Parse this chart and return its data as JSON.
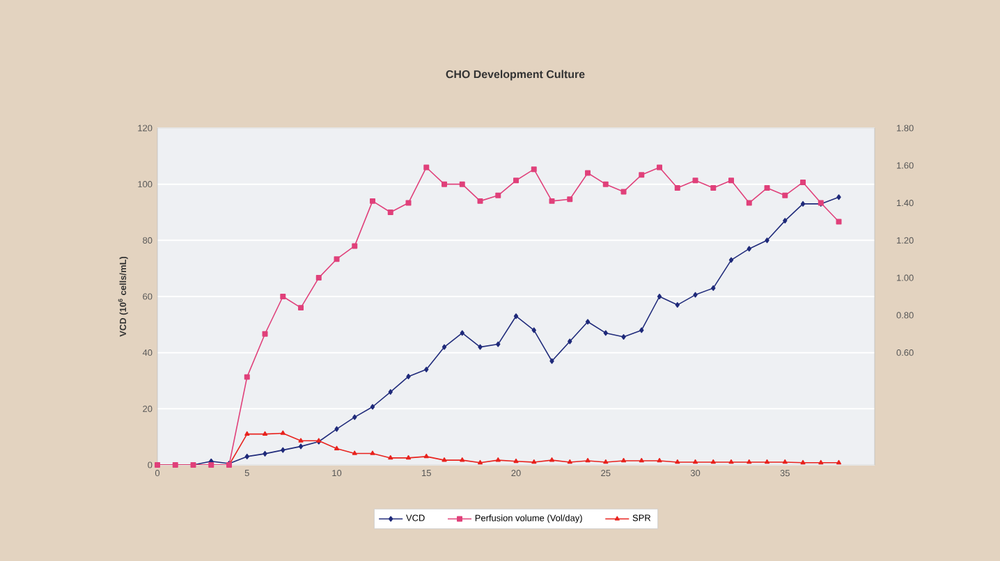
{
  "chart_data": {
    "type": "line",
    "title": "CHO Development Culture",
    "ylabel": "VCD (10$^{6}$ cells/mL)",
    "x": [
      0,
      1,
      2,
      3,
      4,
      5,
      6,
      7,
      8,
      9,
      10,
      11,
      12,
      13,
      14,
      15,
      16,
      17,
      18,
      19,
      20,
      21,
      22,
      23,
      24,
      25,
      26,
      27,
      28,
      29,
      30,
      31,
      32,
      33,
      34,
      35,
      36,
      37,
      38
    ],
    "xlim": [
      0,
      40
    ],
    "xticks": [
      0,
      5,
      10,
      15,
      20,
      25,
      30,
      35
    ],
    "ylim": [
      0,
      120
    ],
    "yticks": [
      0,
      20,
      40,
      60,
      80,
      100,
      120
    ],
    "y2lim": [
      0,
      1.8
    ],
    "y2ticks": [
      {
        "value": 0.6,
        "label": "0.60"
      },
      {
        "value": 0.8,
        "label": "0.80"
      },
      {
        "value": 1.0,
        "label": "1.00"
      },
      {
        "value": 1.2,
        "label": "1.20"
      },
      {
        "value": 1.4,
        "label": "1.40"
      },
      {
        "value": 1.6,
        "label": "1.60"
      },
      {
        "value": 1.8,
        "label": "1.80"
      }
    ],
    "grid": "y",
    "legend": "bottom",
    "line_style": "solid",
    "series": [
      {
        "name": "VCD",
        "color": "#1f2a7a",
        "marker": "diamond",
        "values": [
          0,
          0,
          0,
          1.3,
          0.5,
          3,
          4,
          5.3,
          6.6,
          8.3,
          12.8,
          17,
          20.7,
          26,
          31.5,
          34,
          42,
          47,
          42,
          43,
          53,
          48,
          37,
          44,
          51,
          47,
          45.6,
          48,
          60,
          57,
          60.6,
          63,
          73,
          77,
          80,
          87,
          93,
          93,
          95.4
        ]
      },
      {
        "name": "Perfusion volume (Vol/day)",
        "color": "#e0407a",
        "marker": "square",
        "axis": "y2",
        "values": [
          0,
          0,
          0,
          0,
          0,
          0.47,
          0.7,
          0.9,
          0.84,
          1.0,
          1.1,
          1.17,
          1.41,
          1.35,
          1.4,
          1.59,
          1.5,
          1.5,
          1.41,
          1.44,
          1.52,
          1.58,
          1.41,
          1.42,
          1.56,
          1.5,
          1.46,
          1.55,
          1.59,
          1.48,
          1.52,
          1.48,
          1.52,
          1.4,
          1.48,
          1.44,
          1.51,
          1.4,
          1.3
        ]
      },
      {
        "name": "SPR",
        "color": "#e8231e",
        "marker": "triangle",
        "values": [
          0,
          0,
          0,
          0,
          0,
          11,
          11,
          11.3,
          8.6,
          8.6,
          5.8,
          4.1,
          4.1,
          2.5,
          2.5,
          3,
          1.7,
          1.7,
          0.8,
          1.7,
          1.3,
          1.0,
          1.7,
          1.0,
          1.5,
          1.0,
          1.5,
          1.5,
          1.5,
          1.0,
          1.0,
          1.0,
          1.0,
          1.0,
          1.0,
          1.0,
          0.8,
          0.8,
          0.8
        ]
      }
    ]
  }
}
